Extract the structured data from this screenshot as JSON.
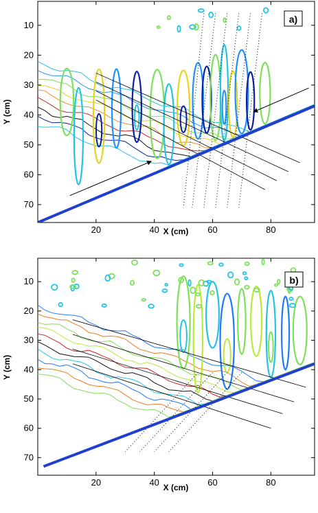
{
  "chart_data": [
    {
      "type": "contour",
      "panel_label": "a)",
      "xlabel": "X (cm)",
      "ylabel": "Y (cm)",
      "xlim": [
        0,
        95
      ],
      "ylim": [
        76,
        2
      ],
      "y_reversed": true,
      "xticks": [
        20,
        40,
        60,
        80
      ],
      "yticks": [
        10,
        20,
        30,
        40,
        50,
        60,
        70
      ],
      "colors": {
        "shoreline": "#1f3fd0",
        "contours": [
          "#22c3e6",
          "#1e90ff",
          "#7ee05a",
          "#e8d21e",
          "#f08a2a",
          "#cc2222",
          "#101010",
          "#0a20a0"
        ]
      },
      "shoreline": {
        "x": [
          0,
          95
        ],
        "y": [
          76,
          37
        ]
      },
      "arrows": [
        {
          "x": [
            11,
            39
          ],
          "y": [
            67,
            55.5
          ]
        },
        {
          "x": [
            93,
            74
          ],
          "y": [
            31,
            39
          ]
        }
      ],
      "rays": [
        {
          "x": [
            20,
            90
          ],
          "y": [
            26,
            56
          ]
        },
        {
          "x": [
            20,
            86
          ],
          "y": [
            29,
            59
          ]
        },
        {
          "x": [
            20,
            82
          ],
          "y": [
            32,
            62
          ]
        },
        {
          "x": [
            20,
            78
          ],
          "y": [
            35,
            65
          ]
        }
      ],
      "transect_x_top": [
        57,
        61,
        65,
        69,
        73,
        77
      ],
      "transect_y_top": 6,
      "transect_x_bottom": [
        50,
        53,
        57,
        61,
        65,
        69
      ],
      "transect_y_bottom": 71
    },
    {
      "type": "contour",
      "panel_label": "b)",
      "xlabel": "X (cm)",
      "ylabel": "Y (cm)",
      "xlim": [
        0,
        95
      ],
      "ylim": [
        76,
        2
      ],
      "y_reversed": true,
      "xticks": [
        20,
        40,
        60,
        80
      ],
      "yticks": [
        10,
        20,
        30,
        40,
        50,
        60,
        70
      ],
      "colors": {
        "shoreline": "#1f3fd0",
        "contours": [
          "#1e78ff",
          "#f07a1e",
          "#7ee05a",
          "#b8ea3a",
          "#cc2222",
          "#101010",
          "#22c3e6"
        ]
      },
      "shoreline": {
        "x": [
          2,
          95
        ],
        "y": [
          73,
          38
        ]
      },
      "rays": [
        {
          "x": [
            12,
            92
          ],
          "y": [
            23,
            46
          ]
        },
        {
          "x": [
            12,
            88
          ],
          "y": [
            28,
            51
          ]
        },
        {
          "x": [
            12,
            84
          ],
          "y": [
            33,
            55
          ]
        },
        {
          "x": [
            12,
            80
          ],
          "y": [
            38,
            60
          ]
        }
      ],
      "transect_x_top": [
        55,
        60,
        65,
        70
      ],
      "transect_y_top": 41,
      "transect_x_bottom": [
        30,
        35,
        40,
        45
      ],
      "transect_y_bottom": 68
    }
  ]
}
